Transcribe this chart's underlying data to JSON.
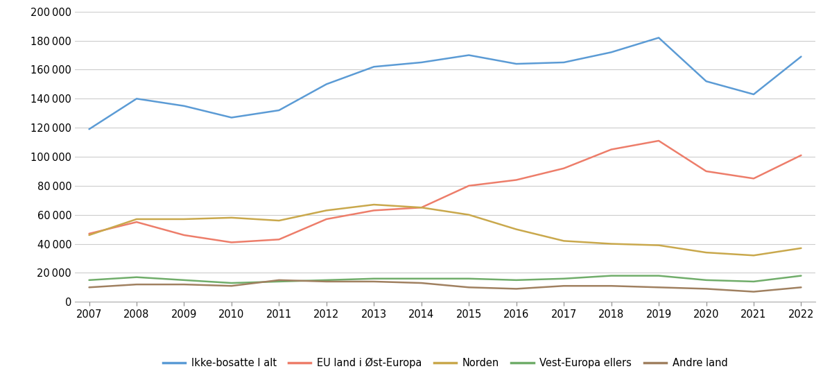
{
  "years": [
    2007,
    2008,
    2009,
    2010,
    2011,
    2012,
    2013,
    2014,
    2015,
    2016,
    2017,
    2018,
    2019,
    2020,
    2021,
    2022
  ],
  "series": {
    "Ikke-bosatte I alt": [
      119000,
      140000,
      135000,
      127000,
      132000,
      150000,
      162000,
      165000,
      170000,
      164000,
      165000,
      172000,
      182000,
      152000,
      143000,
      169000
    ],
    "EU land i Øst-Europa": [
      47000,
      55000,
      46000,
      41000,
      43000,
      57000,
      63000,
      65000,
      80000,
      84000,
      92000,
      105000,
      111000,
      90000,
      85000,
      101000
    ],
    "Norden": [
      46000,
      57000,
      57000,
      58000,
      56000,
      63000,
      67000,
      65000,
      60000,
      50000,
      42000,
      40000,
      39000,
      34000,
      32000,
      37000
    ],
    "Vest-Europa ellers": [
      15000,
      17000,
      15000,
      13000,
      14000,
      15000,
      16000,
      16000,
      16000,
      15000,
      16000,
      18000,
      18000,
      15000,
      14000,
      18000
    ],
    "Andre land": [
      10000,
      12000,
      12000,
      11000,
      15000,
      14000,
      14000,
      13000,
      10000,
      9000,
      11000,
      11000,
      10000,
      9000,
      7000,
      10000
    ]
  },
  "colors": {
    "Ikke-bosatte I alt": "#5B9BD5",
    "EU land i Øst-Europa": "#ED7D6A",
    "Norden": "#C9A84C",
    "Vest-Europa ellers": "#70AD6A",
    "Andre land": "#A08060"
  },
  "ylim": [
    0,
    200000
  ],
  "yticks": [
    0,
    20000,
    40000,
    60000,
    80000,
    100000,
    120000,
    140000,
    160000,
    180000,
    200000
  ],
  "background_color": "#ffffff",
  "grid_color": "#cccccc",
  "line_width": 1.8,
  "font_size": 10.5
}
